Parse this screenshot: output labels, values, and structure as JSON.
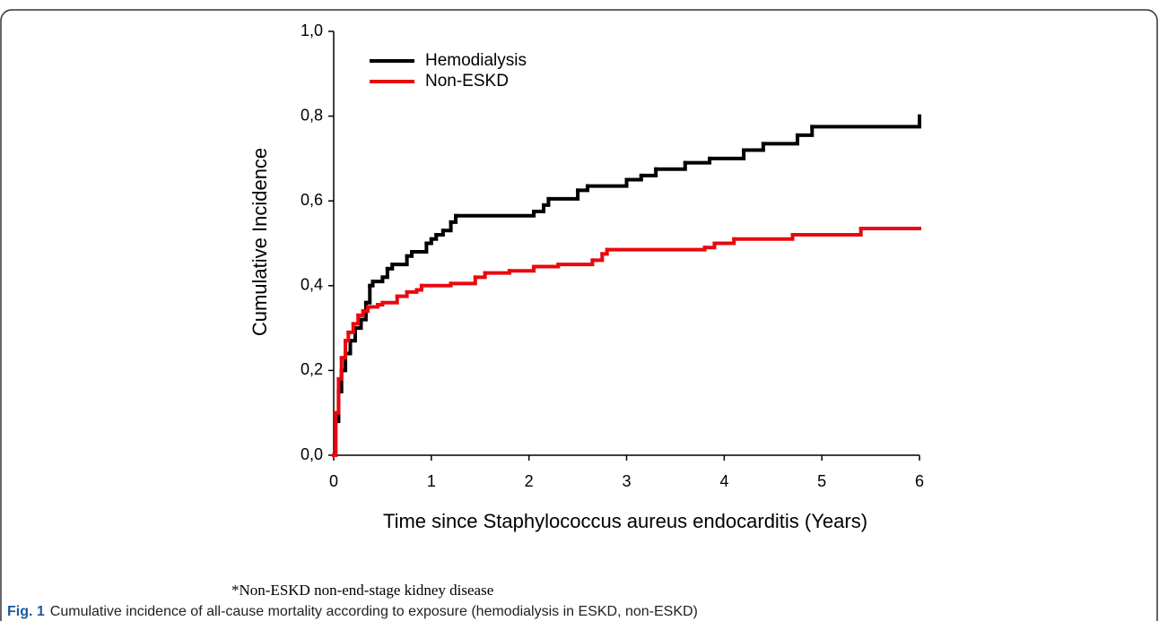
{
  "chart_data": {
    "type": "line",
    "step": true,
    "xlabel": "Time since Staphylococcus aureus endocarditis (Years)",
    "ylabel": "Cumulative Incidence",
    "xlim": [
      0,
      6
    ],
    "xticks": [
      0,
      1,
      2,
      3,
      4,
      5,
      6
    ],
    "ylim": [
      0,
      1
    ],
    "yticks": [
      {
        "value": 0,
        "label": "0,0"
      },
      {
        "value": 0.2,
        "label": "0,2"
      },
      {
        "value": 0.4,
        "label": "0,4"
      },
      {
        "value": 0.6,
        "label": "0,6"
      },
      {
        "value": 0.8,
        "label": "0,8"
      },
      {
        "value": 1,
        "label": "1,0"
      }
    ],
    "legend": "upper left",
    "series": [
      {
        "name": "Hemodialysis",
        "color": "#000000",
        "x": [
          0,
          0.02,
          0.05,
          0.08,
          0.12,
          0.17,
          0.22,
          0.28,
          0.33,
          0.37,
          0.4,
          0.5,
          0.55,
          0.6,
          0.75,
          0.8,
          0.95,
          1.0,
          1.05,
          1.12,
          1.2,
          1.25,
          2.05,
          2.15,
          2.2,
          2.5,
          2.6,
          3.0,
          3.15,
          3.3,
          3.6,
          3.85,
          4.2,
          4.4,
          4.75,
          4.9,
          6.0
        ],
        "values": [
          0,
          0.08,
          0.15,
          0.2,
          0.24,
          0.27,
          0.3,
          0.32,
          0.36,
          0.4,
          0.41,
          0.42,
          0.44,
          0.45,
          0.47,
          0.48,
          0.5,
          0.51,
          0.52,
          0.53,
          0.55,
          0.565,
          0.575,
          0.59,
          0.605,
          0.625,
          0.635,
          0.65,
          0.66,
          0.675,
          0.69,
          0.7,
          0.72,
          0.735,
          0.755,
          0.775,
          0.8
        ]
      },
      {
        "name": "Non-ESKD",
        "color": "#e8080f",
        "x": [
          0,
          0.02,
          0.05,
          0.08,
          0.12,
          0.15,
          0.2,
          0.25,
          0.3,
          0.35,
          0.45,
          0.5,
          0.65,
          0.75,
          0.85,
          0.9,
          1.2,
          1.45,
          1.55,
          1.8,
          2.05,
          2.3,
          2.65,
          2.75,
          2.8,
          3.8,
          3.9,
          4.1,
          4.7,
          5.4,
          6.0
        ],
        "values": [
          0,
          0.1,
          0.18,
          0.23,
          0.27,
          0.29,
          0.31,
          0.33,
          0.34,
          0.35,
          0.355,
          0.36,
          0.375,
          0.385,
          0.39,
          0.4,
          0.405,
          0.42,
          0.43,
          0.435,
          0.445,
          0.45,
          0.46,
          0.475,
          0.485,
          0.49,
          0.5,
          0.51,
          0.52,
          0.535,
          0.535
        ]
      }
    ]
  },
  "footnote": "*Non-ESKD non-end-stage kidney disease",
  "caption": {
    "label": "Fig. 1",
    "text": "Cumulative incidence of all-cause mortality according to exposure (hemodialysis in ESKD, non-ESKD)"
  }
}
